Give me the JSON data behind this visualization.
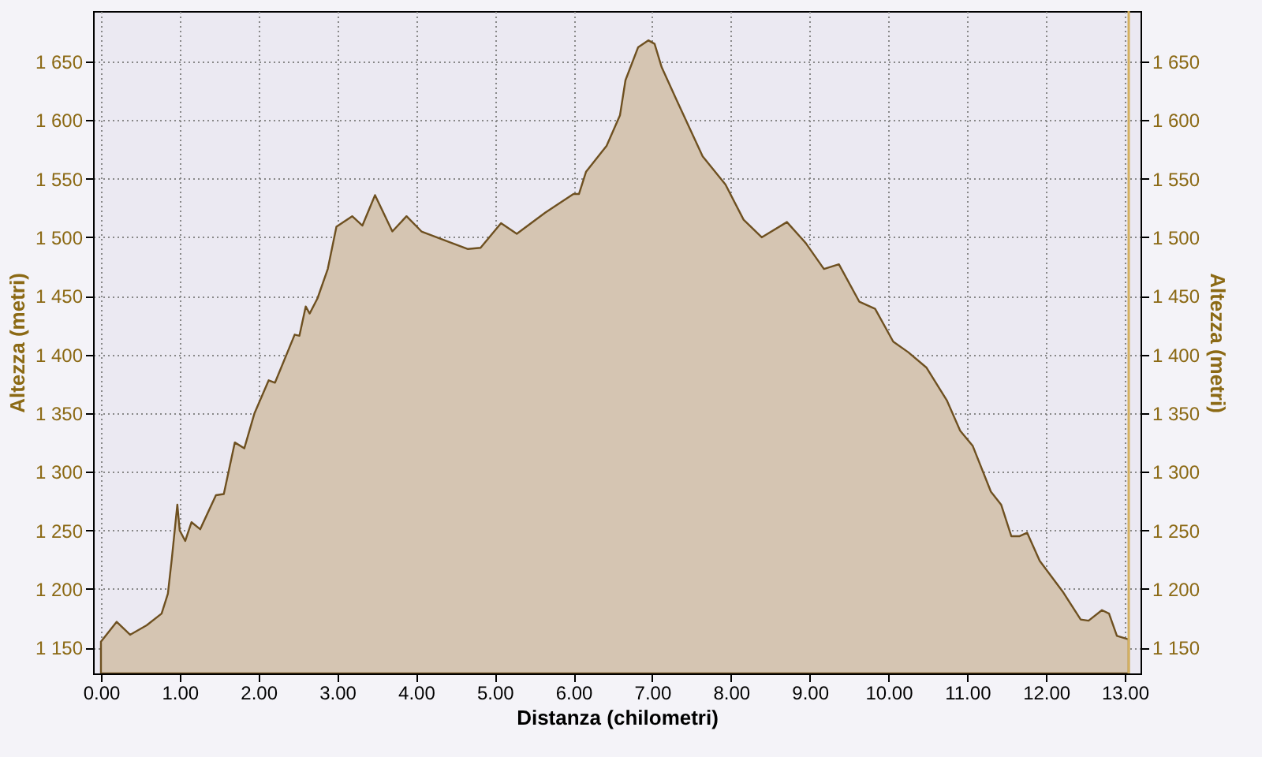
{
  "chart_data": {
    "type": "area",
    "xlabel": "Distanza (chilometri)",
    "ylabel": "Altezza (metri)",
    "y2label": "Altezza (metri)",
    "xlim": [
      -0.1,
      13.2
    ],
    "ylim": [
      1128,
      1693
    ],
    "y2lim": [
      1128,
      1693
    ],
    "xticks": [
      {
        "value": 0,
        "label": "0.00"
      },
      {
        "value": 1,
        "label": "1.00"
      },
      {
        "value": 2,
        "label": "2.00"
      },
      {
        "value": 3,
        "label": "3.00"
      },
      {
        "value": 4,
        "label": "4.00"
      },
      {
        "value": 5,
        "label": "5.00"
      },
      {
        "value": 6,
        "label": "6.00"
      },
      {
        "value": 7,
        "label": "7.00"
      },
      {
        "value": 8,
        "label": "8.00"
      },
      {
        "value": 9,
        "label": "9.00"
      },
      {
        "value": 10,
        "label": "10.00"
      },
      {
        "value": 11,
        "label": "11.00"
      },
      {
        "value": 12,
        "label": "12.00"
      },
      {
        "value": 13,
        "label": "13.00"
      }
    ],
    "yticks": [
      {
        "value": 1150,
        "label": "1 150"
      },
      {
        "value": 1200,
        "label": "1 200"
      },
      {
        "value": 1250,
        "label": "1 250"
      },
      {
        "value": 1300,
        "label": "1 300"
      },
      {
        "value": 1350,
        "label": "1 350"
      },
      {
        "value": 1400,
        "label": "1 400"
      },
      {
        "value": 1450,
        "label": "1 450"
      },
      {
        "value": 1500,
        "label": "1 500"
      },
      {
        "value": 1550,
        "label": "1 550"
      },
      {
        "value": 1600,
        "label": "1 600"
      },
      {
        "value": 1650,
        "label": "1 650"
      }
    ],
    "y2ticks": [
      {
        "value": 1150,
        "label": "1 150"
      },
      {
        "value": 1200,
        "label": "1 200"
      },
      {
        "value": 1250,
        "label": "1 250"
      },
      {
        "value": 1300,
        "label": "1 300"
      },
      {
        "value": 1350,
        "label": "1 350"
      },
      {
        "value": 1400,
        "label": "1 400"
      },
      {
        "value": 1450,
        "label": "1 450"
      },
      {
        "value": 1500,
        "label": "1 500"
      },
      {
        "value": 1550,
        "label": "1 550"
      },
      {
        "value": 1600,
        "label": "1 600"
      },
      {
        "value": 1650,
        "label": "1 650"
      }
    ],
    "grid": true,
    "ref_lines": [
      {
        "axis": "x",
        "value": 13.05,
        "color": "#d4b060"
      }
    ],
    "series": [
      {
        "color": "#d5c5b2",
        "x": [
          0,
          0.2,
          0.37,
          0.58,
          0.77,
          0.85,
          0.9,
          0.97,
          1.0,
          1.07,
          1.15,
          1.26,
          1.46,
          1.56,
          1.7,
          1.82,
          1.95,
          2.13,
          2.21,
          2.46,
          2.52,
          2.6,
          2.65,
          2.75,
          2.88,
          2.99,
          3.19,
          3.32,
          3.48,
          3.7,
          3.88,
          4.07,
          4.46,
          4.66,
          4.82,
          5.08,
          5.28,
          5.64,
          6.0,
          6.07,
          6.16,
          6.36,
          6.42,
          6.59,
          6.66,
          6.82,
          6.95,
          7.03,
          7.12,
          7.31,
          7.64,
          7.93,
          8.16,
          8.39,
          8.71,
          8.95,
          9.18,
          9.37,
          9.63,
          9.83,
          10.06,
          10.25,
          10.48,
          10.74,
          10.91,
          11.07,
          11.3,
          11.43,
          11.56,
          11.66,
          11.76,
          11.92,
          12.21,
          12.44,
          12.54,
          12.71,
          12.8,
          12.9,
          13.05
        ],
        "values": [
          1155,
          1172,
          1161,
          1169,
          1179,
          1196,
          1226,
          1272,
          1250,
          1241,
          1257,
          1251,
          1280,
          1281,
          1325,
          1320,
          1350,
          1378,
          1376,
          1417,
          1416,
          1441,
          1435,
          1448,
          1473,
          1509,
          1518,
          1510,
          1536,
          1505,
          1518,
          1505,
          1495,
          1490,
          1491,
          1512,
          1503,
          1521,
          1537,
          1537,
          1556,
          1573,
          1578,
          1604,
          1634,
          1662,
          1668,
          1665,
          1645,
          1617,
          1569,
          1545,
          1515,
          1500,
          1513,
          1495,
          1473,
          1477,
          1445,
          1439,
          1411,
          1402,
          1389,
          1361,
          1335,
          1322,
          1283,
          1272,
          1245,
          1245,
          1248,
          1224,
          1198,
          1174,
          1173,
          1182,
          1179,
          1160,
          1157
        ]
      }
    ]
  }
}
